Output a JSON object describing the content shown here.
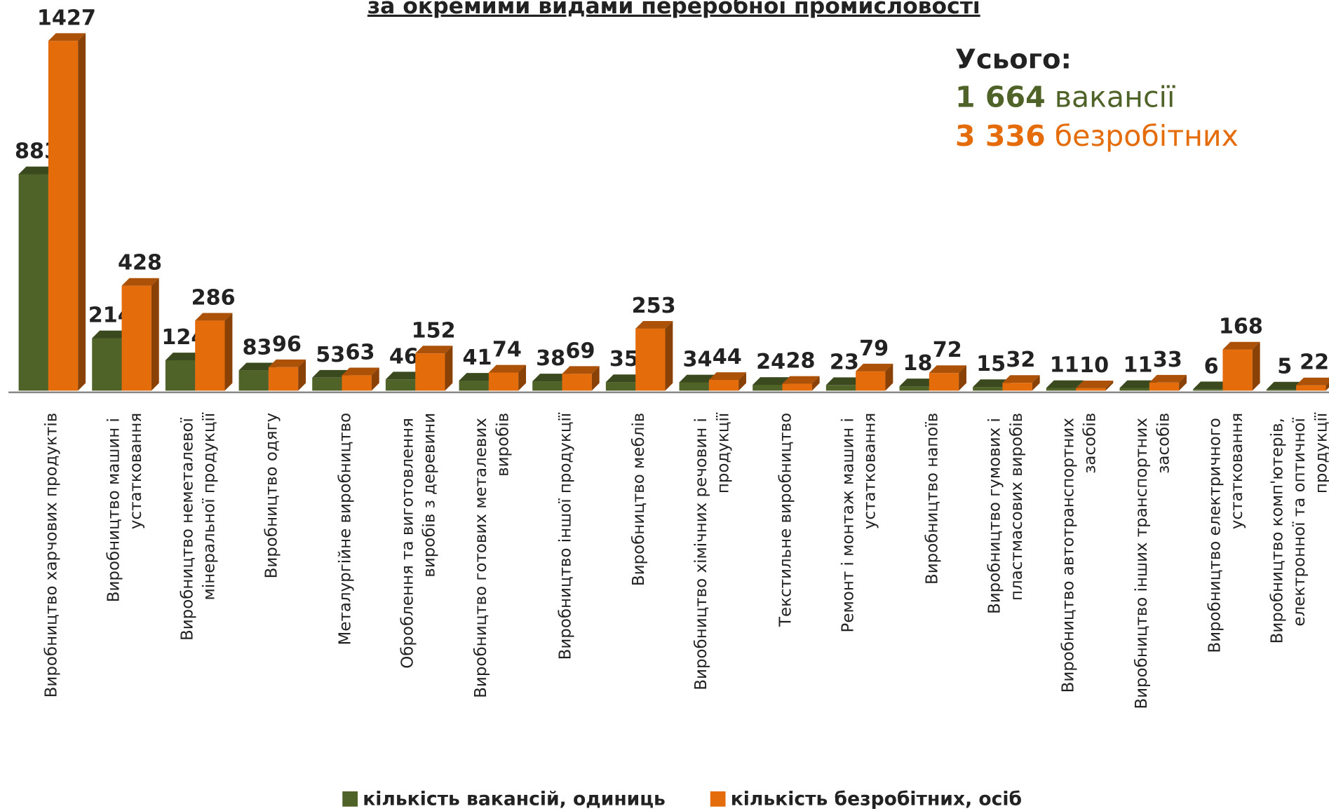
{
  "chart_data": {
    "type": "bar3d",
    "title": "за окремими видами переробної промисловості",
    "categories": [
      "Виробництво харчових продуктів",
      "Виробництво машин і устатковання",
      "Виробництво неметалевої мінеральної продукції",
      "Виробництво одягу",
      "Металургійне виробництво",
      "Оброблення та виготовлення виробів з деревини",
      "Виробництво готових металевих виробів",
      "Виробництво іншої продукції",
      "Виробництво меблів",
      "Виробництво хімічних речовин і продукції",
      "Текстильне виробництво",
      "Ремонт і монтаж машин і устатковання",
      "Виробництво напоїв",
      "Виробництво гумових і пластмасових виробів",
      "Виробництво автотранспортних засобів",
      "Виробництво інших транспортних засобів",
      "Виробництво електричного устатковання",
      "Виробництво комп'ютерів, електронної та оптичної продукції"
    ],
    "series": [
      {
        "name": "кількість вакансій, одиниць",
        "color": "#4f6228",
        "values": [
          883,
          214,
          124,
          83,
          53,
          46,
          41,
          38,
          35,
          34,
          24,
          23,
          18,
          15,
          11,
          11,
          6,
          5
        ]
      },
      {
        "name": "кількість безробітних, осіб",
        "color": "#e46c0a",
        "values": [
          1427,
          428,
          286,
          96,
          63,
          152,
          74,
          69,
          253,
          44,
          28,
          79,
          72,
          32,
          10,
          33,
          168,
          22
        ]
      }
    ],
    "legend": "bottom",
    "totals": {
      "label": "Усього:",
      "vacancies": "1 664",
      "vacancies_label": "вакансії",
      "unemployed": "3 336",
      "unemployed_label": "безробітних"
    }
  }
}
